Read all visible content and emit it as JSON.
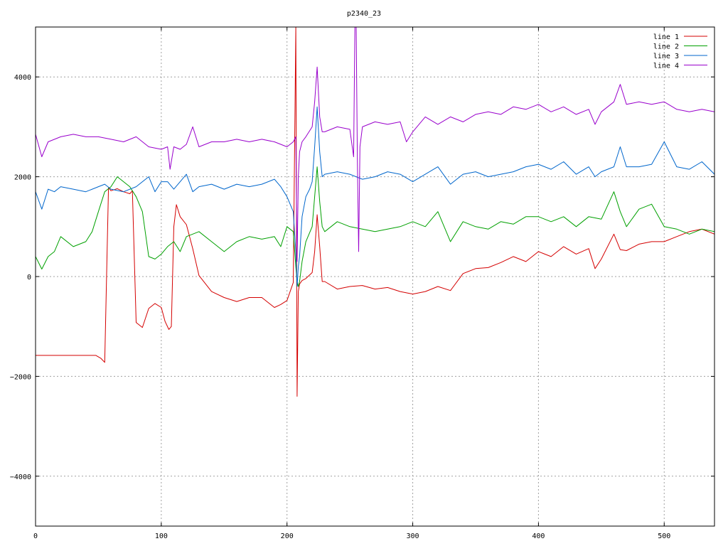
{
  "chart_data": {
    "type": "line",
    "title": "p2340_23",
    "xlabel": "",
    "ylabel": "",
    "xlim": [
      0,
      540
    ],
    "ylim": [
      -5000,
      5000
    ],
    "xticks": [
      0,
      100,
      200,
      300,
      400,
      500
    ],
    "yticks": [
      -4000,
      -2000,
      0,
      2000,
      4000
    ],
    "grid": true,
    "legend_position": "top-right",
    "series": [
      {
        "name": "line 1",
        "color": "#d40000",
        "x": [
          0,
          20,
          40,
          48,
          52,
          55,
          58,
          60,
          65,
          70,
          75,
          77,
          80,
          85,
          90,
          95,
          100,
          103,
          106,
          108,
          110,
          112,
          115,
          120,
          125,
          130,
          140,
          150,
          160,
          170,
          180,
          190,
          195,
          200,
          205,
          207,
          208,
          209,
          210,
          212,
          215,
          220,
          222,
          224,
          226,
          228,
          230,
          240,
          250,
          260,
          270,
          280,
          290,
          300,
          310,
          320,
          330,
          340,
          350,
          360,
          370,
          380,
          390,
          400,
          410,
          420,
          430,
          440,
          445,
          450,
          460,
          465,
          470,
          480,
          490,
          500,
          510,
          520,
          530,
          540
        ],
        "y": [
          -1580,
          -1580,
          -1580,
          -1580,
          -1640,
          -1720,
          1780,
          1720,
          1760,
          1700,
          1660,
          1720,
          -920,
          -1020,
          -640,
          -540,
          -620,
          -900,
          -1060,
          -1000,
          1000,
          1440,
          1200,
          1040,
          560,
          20,
          -300,
          -420,
          -500,
          -420,
          -420,
          -620,
          -560,
          -480,
          -120,
          5000,
          -2400,
          -300,
          -150,
          -80,
          -40,
          80,
          500,
          1240,
          600,
          -100,
          -100,
          -250,
          -200,
          -180,
          -250,
          -220,
          -300,
          -350,
          -300,
          -200,
          -280,
          60,
          160,
          180,
          280,
          400,
          300,
          500,
          400,
          600,
          450,
          560,
          160,
          350,
          850,
          540,
          520,
          650,
          700,
          700,
          800,
          900,
          950,
          850
        ]
      },
      {
        "name": "line 2",
        "color": "#00a000",
        "x": [
          0,
          5,
          10,
          15,
          20,
          30,
          40,
          45,
          50,
          55,
          60,
          65,
          70,
          75,
          80,
          85,
          90,
          95,
          100,
          105,
          110,
          115,
          120,
          130,
          140,
          150,
          160,
          170,
          180,
          190,
          195,
          200,
          205,
          207,
          208,
          209,
          210,
          212,
          215,
          220,
          224,
          226,
          228,
          230,
          240,
          250,
          260,
          270,
          280,
          290,
          300,
          310,
          320,
          330,
          340,
          350,
          360,
          370,
          380,
          390,
          400,
          410,
          420,
          430,
          440,
          450,
          460,
          465,
          470,
          480,
          490,
          500,
          510,
          520,
          530,
          540
        ],
        "y": [
          400,
          150,
          400,
          500,
          800,
          600,
          700,
          900,
          1300,
          1700,
          1800,
          2000,
          1900,
          1800,
          1600,
          1300,
          400,
          350,
          450,
          600,
          700,
          500,
          800,
          900,
          700,
          500,
          700,
          800,
          750,
          800,
          600,
          1000,
          900,
          200,
          -100,
          -200,
          -100,
          300,
          700,
          1000,
          2200,
          1500,
          1000,
          900,
          1100,
          1000,
          950,
          900,
          950,
          1000,
          1100,
          1000,
          1300,
          700,
          1100,
          1000,
          950,
          1100,
          1050,
          1200,
          1200,
          1100,
          1200,
          1000,
          1200,
          1150,
          1700,
          1300,
          1000,
          1350,
          1450,
          1000,
          950,
          850,
          950,
          900
        ]
      },
      {
        "name": "line 3",
        "color": "#0066cc",
        "x": [
          0,
          5,
          10,
          15,
          20,
          30,
          40,
          50,
          55,
          60,
          70,
          80,
          90,
          95,
          100,
          105,
          110,
          115,
          120,
          125,
          130,
          140,
          150,
          160,
          170,
          180,
          190,
          195,
          200,
          205,
          207,
          208,
          209,
          210,
          212,
          215,
          218,
          220,
          222,
          224,
          226,
          228,
          230,
          240,
          250,
          260,
          270,
          280,
          290,
          300,
          310,
          320,
          330,
          340,
          350,
          360,
          370,
          380,
          390,
          400,
          410,
          420,
          430,
          440,
          445,
          450,
          460,
          465,
          470,
          480,
          490,
          500,
          510,
          520,
          530,
          540
        ],
        "y": [
          1700,
          1350,
          1750,
          1700,
          1800,
          1750,
          1700,
          1800,
          1850,
          1750,
          1700,
          1800,
          2000,
          1700,
          1900,
          1900,
          1750,
          1900,
          2050,
          1700,
          1800,
          1850,
          1750,
          1850,
          1800,
          1850,
          1950,
          1800,
          1600,
          1300,
          500,
          -200,
          200,
          400,
          1200,
          1600,
          1750,
          1900,
          2600,
          3400,
          2500,
          2000,
          2050,
          2100,
          2050,
          1950,
          2000,
          2100,
          2050,
          1900,
          2050,
          2200,
          1850,
          2050,
          2100,
          2000,
          2050,
          2100,
          2200,
          2250,
          2150,
          2300,
          2050,
          2200,
          2000,
          2100,
          2200,
          2600,
          2200,
          2200,
          2250,
          2700,
          2200,
          2150,
          2300,
          2050
        ]
      },
      {
        "name": "line 4",
        "color": "#9900cc",
        "x": [
          0,
          5,
          10,
          20,
          30,
          40,
          50,
          60,
          70,
          80,
          90,
          100,
          105,
          107,
          110,
          115,
          120,
          125,
          130,
          140,
          150,
          160,
          170,
          180,
          190,
          200,
          205,
          207,
          208,
          209,
          210,
          212,
          215,
          220,
          222,
          224,
          226,
          228,
          230,
          240,
          250,
          253,
          254,
          255,
          256,
          257,
          258,
          260,
          270,
          280,
          290,
          295,
          300,
          310,
          320,
          330,
          340,
          350,
          360,
          370,
          380,
          390,
          400,
          410,
          420,
          430,
          440,
          445,
          450,
          460,
          465,
          470,
          480,
          490,
          500,
          510,
          520,
          530,
          540
        ],
        "y": [
          2850,
          2400,
          2700,
          2800,
          2850,
          2800,
          2800,
          2750,
          2700,
          2800,
          2600,
          2550,
          2600,
          2150,
          2600,
          2550,
          2650,
          3000,
          2600,
          2700,
          2700,
          2750,
          2700,
          2750,
          2700,
          2600,
          2700,
          2800,
          300,
          2000,
          2500,
          2700,
          2800,
          3000,
          3500,
          4200,
          3200,
          2900,
          2900,
          3000,
          2950,
          2400,
          5000,
          5000,
          2300,
          500,
          2600,
          3000,
          3100,
          3050,
          3100,
          2700,
          2900,
          3200,
          3050,
          3200,
          3100,
          3250,
          3300,
          3250,
          3400,
          3350,
          3450,
          3300,
          3400,
          3250,
          3350,
          3050,
          3300,
          3500,
          3850,
          3450,
          3500,
          3450,
          3500,
          3350,
          3300,
          3350,
          3300
        ]
      }
    ]
  }
}
